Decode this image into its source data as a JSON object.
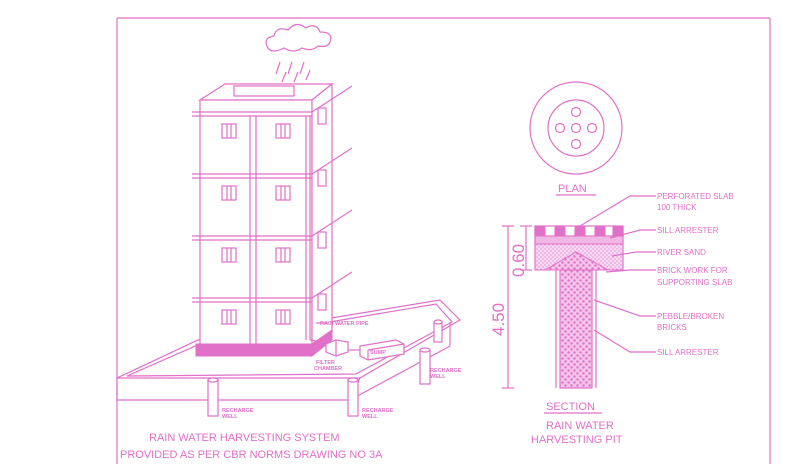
{
  "colors": {
    "ink": "#e070c8",
    "background": "#ffffff"
  },
  "labels": {
    "plan": "PLAN",
    "section": "SECTION",
    "perforated_slab_1": "PERFORATED SLAB",
    "perforated_slab_2": "100 THICK",
    "sill_arrester_top": "SILL ARRESTER",
    "river_sand": "RIVER SAND",
    "brick_work_1": "BRICK WORK FOR",
    "brick_work_2": "SUPPORTING SLAB",
    "pebble_1": "PEBBLE/BROKEN",
    "pebble_2": "BRICKS",
    "sill_arrester_bottom": "SILL ARRESTER",
    "dim_small": "0.60",
    "dim_large": "4.50",
    "pit_title_1": "RAIN WATER",
    "pit_title_2": "HARVESTING PIT",
    "rain_water_pipe": "RAIN WATER PIPE",
    "filter_chamber_1": "FILTER",
    "filter_chamber_2": "CHAMBER",
    "sump": "SUMP",
    "recharge_well_1": "RECHARGE",
    "recharge_well_2": "WELL",
    "system_title_1": "RAIN WATER HARVESTING SYSTEM",
    "system_title_2": "PROVIDED AS PER CBR NORMS DRAWING NO 3A"
  }
}
